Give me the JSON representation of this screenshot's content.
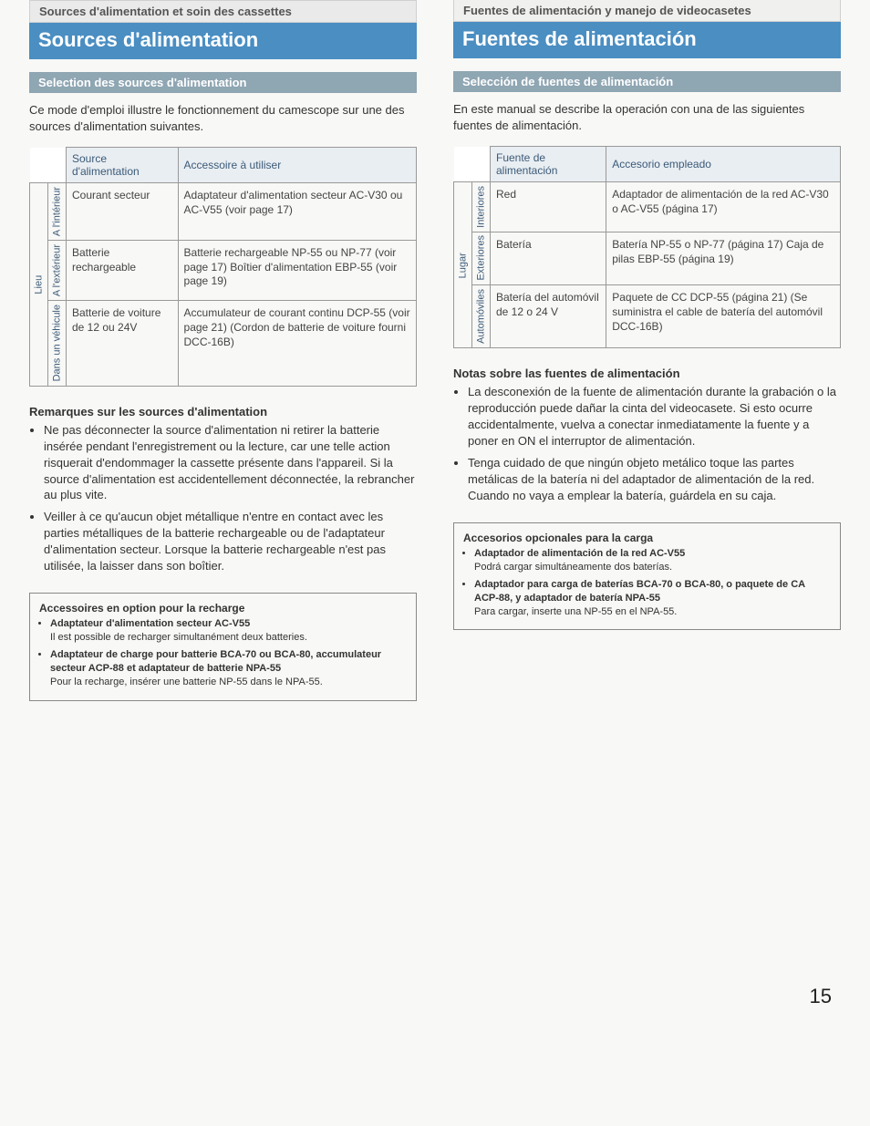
{
  "colors": {
    "title_bg_fr": "#4a8ec2",
    "title_bg_es": "#4a8ec2",
    "sub_bg": "#8fa6b3",
    "th_bg": "#e9eef2",
    "page_bg": "#f8f8f6"
  },
  "page_number": "15",
  "fr": {
    "chapter": "Sources d'alimentation et soin des cassettes",
    "title": "Sources d'alimentation",
    "subtitle": "Selection des sources d'alimentation",
    "intro": "Ce mode d'emploi illustre le fonctionnement du camescope sur une des sources d'alimentation suivantes.",
    "th_source": "Source d'alimentation",
    "th_acc": "Accessoire à utiliser",
    "lieu": "Lieu",
    "rows": [
      {
        "loc": "A l'intérieur",
        "src": "Courant secteur",
        "acc": "Adaptateur d'alimentation secteur AC-V30 ou AC-V55 (voir page 17)"
      },
      {
        "loc": "A l'extérieur",
        "src": "Batterie rechargeable",
        "acc": "Batterie rechargeable NP-55 ou NP-77 (voir page 17) Boîtier d'alimentation EBP-55 (voir page 19)"
      },
      {
        "loc": "Dans un véhicule",
        "src": "Batterie de voiture de 12 ou 24V",
        "acc": "Accumulateur de courant continu DCP-55 (voir page 21) (Cordon de batterie de voiture fourni DCC-16B)"
      }
    ],
    "notes_h": "Remarques sur les sources d'alimentation",
    "notes": [
      "Ne pas déconnecter la source d'alimentation ni retirer la batterie insérée pendant l'enregistrement ou la lecture, car une telle action risquerait d'endommager la cassette présente dans l'appareil. Si la source d'alimentation est accidentellement déconnectée, la rebrancher au plus vite.",
      "Veiller à ce qu'aucun objet métallique n'entre en contact avec les parties métalliques de la batterie rechargeable ou de l'adaptateur d'alimentation secteur. Lorsque la batterie rechargeable n'est pas utilisée, la laisser dans son boîtier."
    ],
    "box_title": "Accessoires en option pour la recharge",
    "box_items": [
      {
        "b": "Adaptateur d'alimentation secteur AC-V55",
        "t": "Il est possible de recharger simultanément deux batteries."
      },
      {
        "b": "Adaptateur de charge pour batterie BCA-70 ou BCA-80, accumulateur secteur ACP-88 et adaptateur de batterie NPA-55",
        "t": "Pour la recharge, insérer une batterie NP-55 dans le NPA-55."
      }
    ]
  },
  "es": {
    "chapter": "Fuentes de alimentación y manejo de videocasetes",
    "title": "Fuentes de alimentación",
    "subtitle": "Selección de fuentes de alimentación",
    "intro": "En este manual se describe la operación con una de las siguientes fuentes de alimentación.",
    "th_source": "Fuente de alimentación",
    "th_acc": "Accesorio empleado",
    "lugar": "Lugar",
    "rows": [
      {
        "loc": "Interiores",
        "src": "Red",
        "acc": "Adaptador de alimentación de la red AC-V30 o AC-V55 (página 17)"
      },
      {
        "loc": "Exteriores",
        "src": "Batería",
        "acc": "Batería NP-55 o NP-77 (página 17) Caja de pilas EBP-55 (página 19)"
      },
      {
        "loc": "Automóviles",
        "src": "Batería del automóvil de 12 o 24 V",
        "acc": "Paquete de CC DCP-55 (página 21) (Se suministra el cable de batería del automóvil DCC-16B)"
      }
    ],
    "notes_h": "Notas sobre las fuentes de alimentación",
    "notes": [
      "La desconexión de la fuente de alimentación durante la grabación o la reproducción puede dañar la cinta del videocasete. Si esto ocurre accidentalmente, vuelva a conectar inmediatamente la fuente y a poner en ON el interruptor de alimentación.",
      "Tenga cuidado de que ningún objeto metálico toque las partes metálicas de la batería ni del adaptador de alimentación de la red. Cuando no vaya a emplear la batería, guárdela en su caja."
    ],
    "box_title": "Accesorios opcionales para la carga",
    "box_items": [
      {
        "b": "Adaptador de alimentación de la red AC-V55",
        "t": "Podrá cargar simultáneamente dos baterías."
      },
      {
        "b": "Adaptador para carga de baterías BCA-70 o BCA-80, o paquete de CA ACP-88, y adaptador de batería NPA-55",
        "t": "Para cargar, inserte una NP-55 en el NPA-55."
      }
    ]
  }
}
